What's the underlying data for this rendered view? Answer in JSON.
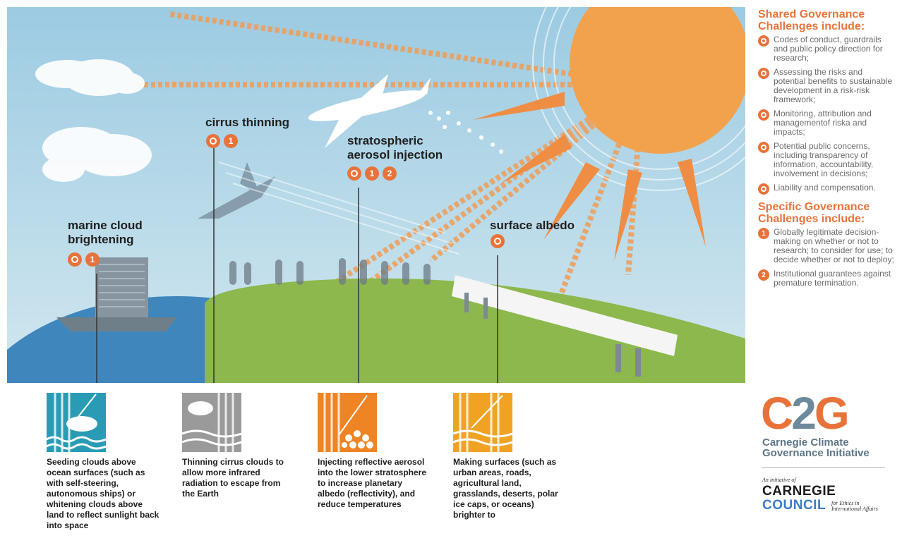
{
  "scene": {
    "colors": {
      "sky": "#a9d0e4",
      "sun": "#f2a24c",
      "ocean": "#3f86bd",
      "land": "#8cb84d",
      "rays": "#ef9d57"
    },
    "labels": {
      "marine": "marine cloud\nbrightening",
      "cirrus": "cirrus thinning",
      "aerosol": "stratospheric\naerosol injection",
      "albedo": "surface albedo"
    },
    "badges": {
      "marine": [
        "dot",
        "1"
      ],
      "cirrus": [
        "dot",
        "1"
      ],
      "aerosol": [
        "dot",
        "1",
        "2"
      ],
      "albedo": [
        "dot"
      ]
    }
  },
  "methods": [
    {
      "tile_color": "#2a9bb4",
      "icon": "cloud-over-waves-icon",
      "text": "Seeding clouds above ocean surfaces (such as with self-steering, autonomous ships) or whitening clouds above land to reflect sunlight back into space"
    },
    {
      "tile_color": "#9a9a9a",
      "icon": "thin-cirrus-icon",
      "text": "Thinning cirrus clouds to allow more infrared radiation to escape from the Earth"
    },
    {
      "tile_color": "#ef8424",
      "icon": "aerosol-particles-icon",
      "text": "Injecting reflective aerosol into the lower stratosphere to increase planetary albedo (reflectivity), and reduce temperatures"
    },
    {
      "tile_color": "#f0a323",
      "icon": "reflective-surface-icon",
      "text": "Making surfaces (such as urban areas, roads, agricultural land, grasslands, deserts, polar ice caps, or oceans) brighter to"
    }
  ],
  "sidebar": {
    "shared_heading": "Shared Governance Challenges include:",
    "shared_items": [
      {
        "badge": "dot",
        "text": "Codes of conduct, guardrails and public policy direction for research;"
      },
      {
        "badge": "dot",
        "text": "Assessing the risks and potential benefits to sustainable development in a risk-risk framework;"
      },
      {
        "badge": "dot",
        "text": "Monitoring, attribution and managementof riska and impacts;"
      },
      {
        "badge": "dot",
        "text": "Potential public concerns, including transparency of information, accountability, involvement in decisions;"
      },
      {
        "badge": "dot",
        "text": "Liability and compensation."
      }
    ],
    "specific_heading": "Specific Governance Challenges include:",
    "specific_items": [
      {
        "badge": "1",
        "text": "Globally legitimate decision-making on whether or not to research; to consider for use; to decide whether or not to deploy;"
      },
      {
        "badge": "2",
        "text": "Institutional guarantees against premature termination."
      }
    ]
  },
  "branding": {
    "c2g_c": "C",
    "c2g_2": "2",
    "c2g_g": "G",
    "c2g_subtitle": "Carnegie Climate Governance Initiative",
    "initiative": "An initiative of",
    "carnegie": "CARNEGIE",
    "council": "COUNCIL",
    "tagline": "for Ethics in International Affairs",
    "colors": {
      "c": "#e8733a",
      "two": "#6d8a9c",
      "g": "#e8733a"
    }
  }
}
